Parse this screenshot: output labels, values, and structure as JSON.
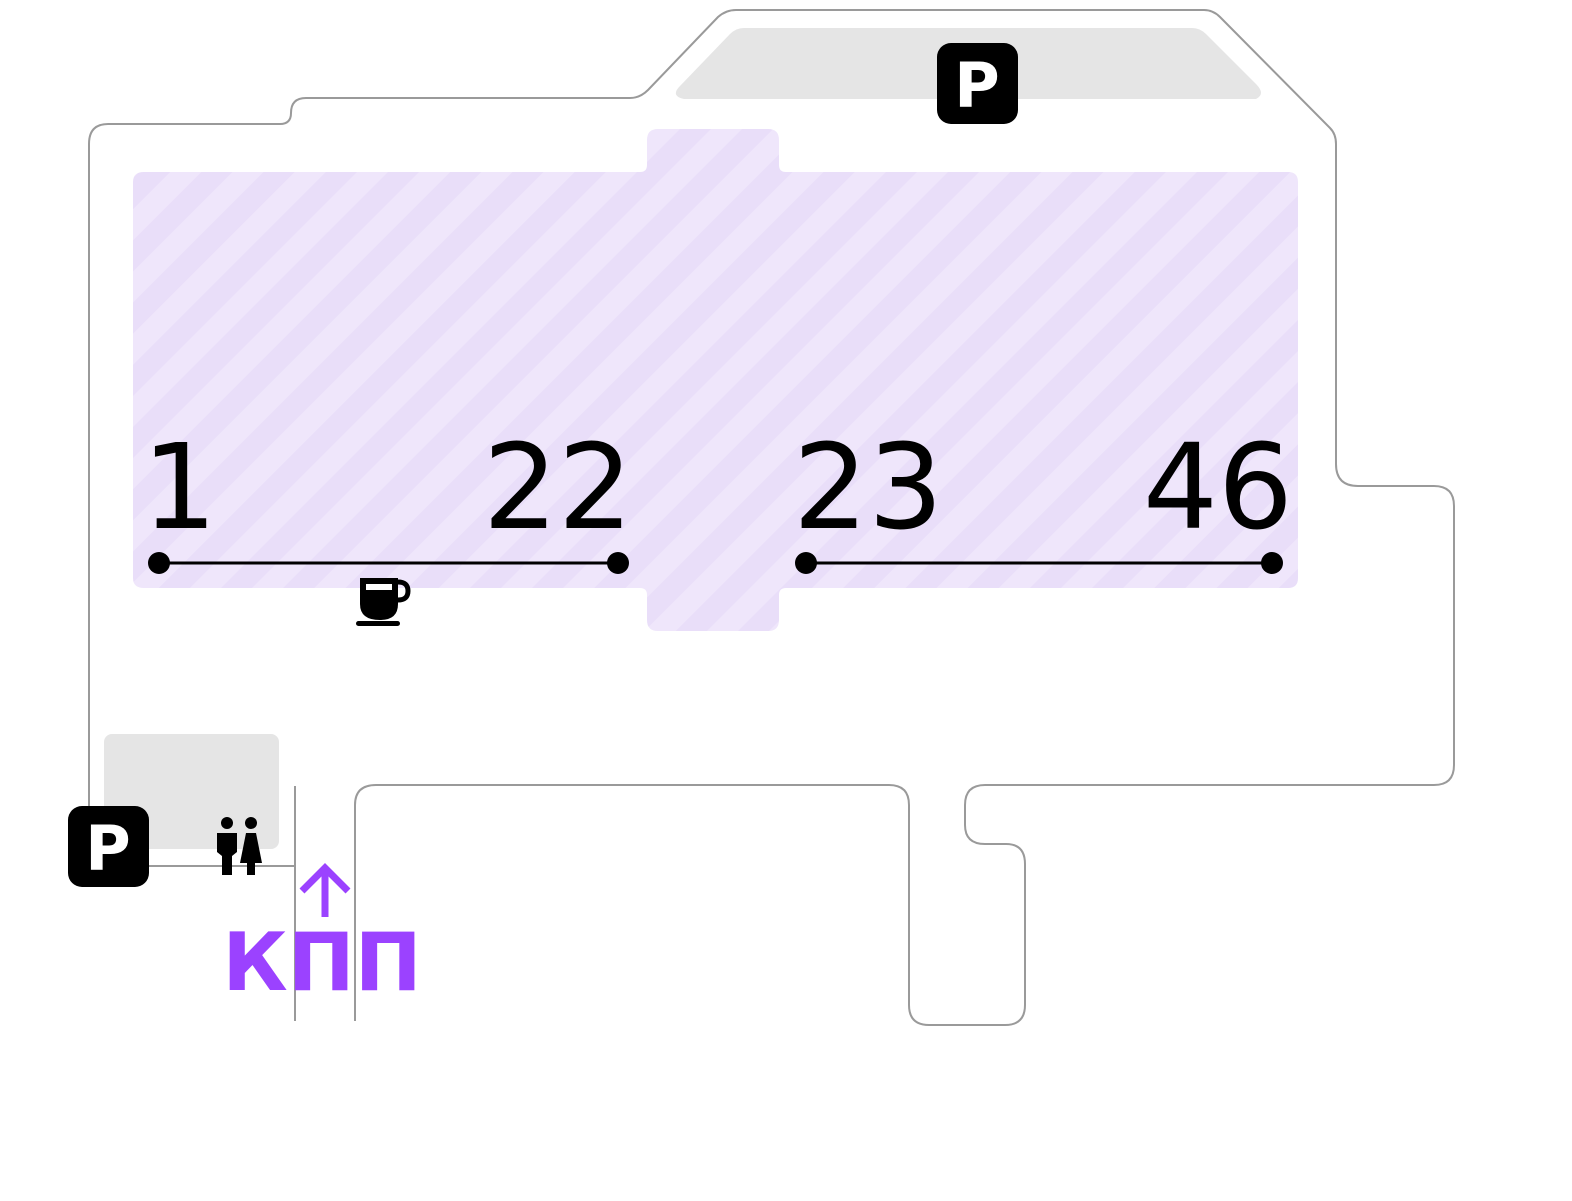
{
  "colors": {
    "outline": "#9a9a9a",
    "zone_fill": "#efe6fb",
    "zone_stripe": "#e6d9f8",
    "parking_area": "#e5e5e5",
    "accent": "#9b42ff",
    "icon": "#000000"
  },
  "gates": {
    "group_a": {
      "start_label": "1",
      "end_label": "22"
    },
    "group_b": {
      "start_label": "23",
      "end_label": "46"
    }
  },
  "checkpoint": {
    "label": "КПП",
    "icon": "arrow-up-icon"
  },
  "parking": [
    {
      "id": "top",
      "label": "P",
      "icon": "parking-icon"
    },
    {
      "id": "bottom-left",
      "label": "P",
      "icon": "parking-icon"
    }
  ],
  "amenities": [
    {
      "name": "cafe",
      "icon": "coffee-cup-icon"
    },
    {
      "name": "restroom",
      "icon": "restroom-icon"
    }
  ]
}
